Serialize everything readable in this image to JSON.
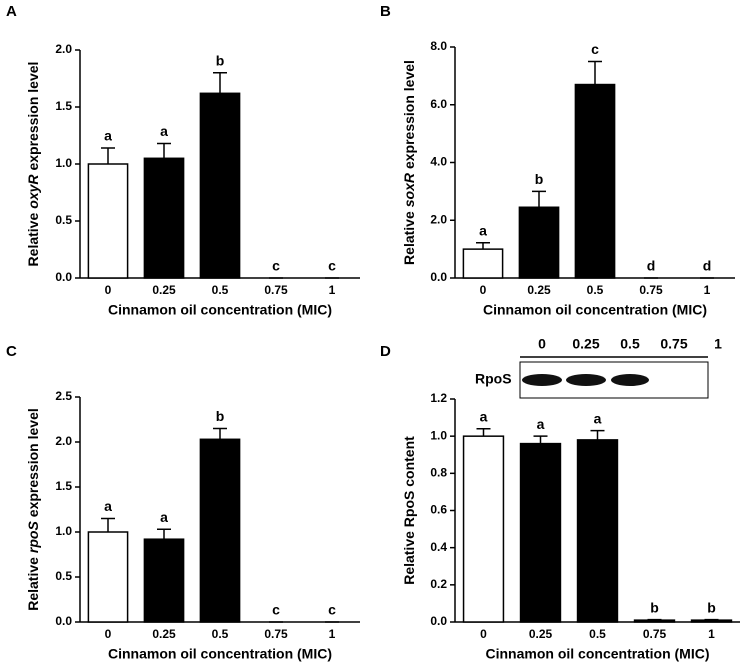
{
  "chart_data": [
    {
      "type": "bar",
      "panel": "A",
      "ylabel": [
        "Relative",
        "oxyR",
        "expression level"
      ],
      "xlabel": "Cinnamon oil concentration (MIC)",
      "categories": [
        "0",
        "0.25",
        "0.5",
        "0.75",
        "1"
      ],
      "values": [
        1.0,
        1.05,
        1.62,
        0,
        0
      ],
      "errors": [
        0.14,
        0.13,
        0.18,
        0,
        0
      ],
      "letters": [
        "a",
        "a",
        "b",
        "c",
        "c"
      ],
      "colors": [
        "#ffffff",
        "#000000",
        "#000000",
        "#000000",
        "#000000"
      ],
      "ylim": [
        0,
        2
      ],
      "yticks": [
        {
          "value": 0,
          "label": "0.0"
        },
        {
          "value": 0.5,
          "label": "0.5"
        },
        {
          "value": 1,
          "label": "1.0"
        },
        {
          "value": 1.5,
          "label": "1.5"
        },
        {
          "value": 2,
          "label": "2.0"
        }
      ]
    },
    {
      "type": "bar",
      "panel": "B",
      "ylabel": [
        "Relative",
        "soxR",
        "expression level"
      ],
      "xlabel": "Cinnamon oil concentration (MIC)",
      "categories": [
        "0",
        "0.25",
        "0.5",
        "0.75",
        "1"
      ],
      "values": [
        1.0,
        2.45,
        6.7,
        0,
        0
      ],
      "errors": [
        0.22,
        0.55,
        0.8,
        0,
        0
      ],
      "letters": [
        "a",
        "b",
        "c",
        "d",
        "d"
      ],
      "colors": [
        "#ffffff",
        "#000000",
        "#000000",
        "#000000",
        "#000000"
      ],
      "ylim": [
        0,
        8
      ],
      "yticks": [
        {
          "value": 0,
          "label": "0.0"
        },
        {
          "value": 2,
          "label": "2.0"
        },
        {
          "value": 4,
          "label": "4.0"
        },
        {
          "value": 6,
          "label": "6.0"
        },
        {
          "value": 8,
          "label": "8.0"
        }
      ]
    },
    {
      "type": "bar",
      "panel": "C",
      "ylabel": [
        "Relative",
        "rpoS",
        "expression level"
      ],
      "xlabel": "Cinnamon oil concentration (MIC)",
      "categories": [
        "0",
        "0.25",
        "0.5",
        "0.75",
        "1"
      ],
      "values": [
        1.0,
        0.92,
        2.03,
        0,
        0
      ],
      "errors": [
        0.15,
        0.11,
        0.12,
        0,
        0
      ],
      "letters": [
        "a",
        "a",
        "b",
        "c",
        "c"
      ],
      "colors": [
        "#ffffff",
        "#000000",
        "#000000",
        "#000000",
        "#000000"
      ],
      "ylim": [
        0,
        2.5
      ],
      "yticks": [
        {
          "value": 0,
          "label": "0.0"
        },
        {
          "value": 0.5,
          "label": "0.5"
        },
        {
          "value": 1,
          "label": "1.0"
        },
        {
          "value": 1.5,
          "label": "1.5"
        },
        {
          "value": 2,
          "label": "2.0"
        },
        {
          "value": 2.5,
          "label": "2.5"
        }
      ]
    },
    {
      "type": "bar",
      "panel": "D",
      "ylabel": [
        "Relative RpoS content"
      ],
      "xlabel": "Cinnamon oil concentration (MIC)",
      "categories": [
        "0",
        "0.25",
        "0.5",
        "0.75",
        "1"
      ],
      "values": [
        1.0,
        0.96,
        0.98,
        0.01,
        0.01
      ],
      "errors": [
        0.04,
        0.04,
        0.05,
        0.003,
        0.003
      ],
      "letters": [
        "a",
        "a",
        "a",
        "b",
        "b"
      ],
      "colors": [
        "#ffffff",
        "#000000",
        "#000000",
        "#000000",
        "#000000"
      ],
      "ylim": [
        0,
        1.2
      ],
      "yticks": [
        {
          "value": 0,
          "label": "0.0"
        },
        {
          "value": 0.2,
          "label": "0.2"
        },
        {
          "value": 0.4,
          "label": "0.4"
        },
        {
          "value": 0.6,
          "label": "0.6"
        },
        {
          "value": 0.8,
          "label": "0.8"
        },
        {
          "value": 1,
          "label": "1.0"
        },
        {
          "value": 1.2,
          "label": "1.2"
        }
      ],
      "inset": {
        "label": "RpoS",
        "lanes": [
          "0",
          "0.25",
          "0.5",
          "0.75",
          "1"
        ]
      }
    }
  ]
}
